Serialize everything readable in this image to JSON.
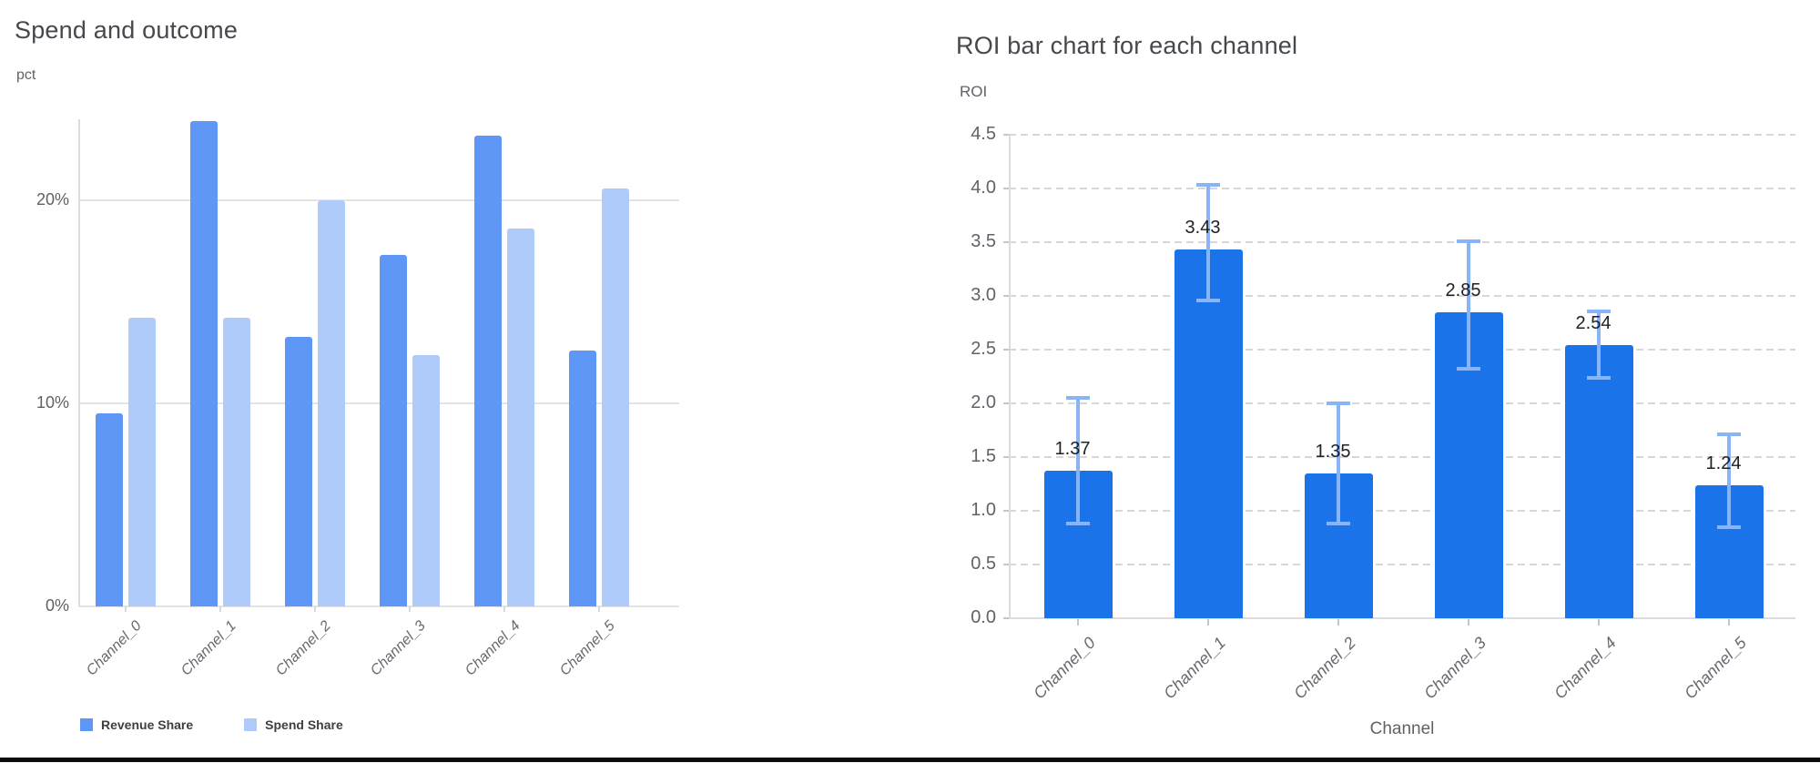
{
  "page": {
    "background": "#ffffff",
    "bottom_border_color": "#0b0b0b"
  },
  "chart_data": [
    {
      "id": "spend-and-outcome",
      "type": "bar",
      "title": "Spend and outcome",
      "xlabel": "",
      "ylabel": "pct",
      "categories": [
        "Channel_0",
        "Channel_1",
        "Channel_2",
        "Channel_3",
        "Channel_4",
        "Channel_5"
      ],
      "series": [
        {
          "name": "Revenue Share",
          "color": "#5f97f6",
          "values": [
            9.5,
            23.9,
            13.3,
            17.3,
            23.2,
            12.6
          ]
        },
        {
          "name": "Spend Share",
          "color": "#aecbfa",
          "values": [
            14.2,
            14.2,
            20.0,
            12.4,
            18.6,
            20.6
          ]
        }
      ],
      "y_tick_values": [
        0,
        10,
        20
      ],
      "y_tick_labels": [
        "0%",
        "10%",
        "20%"
      ],
      "ylim": [
        0,
        24
      ],
      "grid": true,
      "grid_style": "solid",
      "legend_position": "bottom"
    },
    {
      "id": "roi-bar-chart",
      "type": "bar",
      "title": "ROI bar chart for each channel",
      "xlabel": "Channel",
      "ylabel": "ROI",
      "categories": [
        "Channel_0",
        "Channel_1",
        "Channel_2",
        "Channel_3",
        "Channel_4",
        "Channel_5"
      ],
      "series": [
        {
          "name": "ROI",
          "color": "#1a73e8",
          "values": [
            1.37,
            3.43,
            1.35,
            2.85,
            2.54,
            1.24
          ]
        }
      ],
      "data_labels": [
        "1.37",
        "3.43",
        "1.35",
        "2.85",
        "2.54",
        "1.24"
      ],
      "error_bars": {
        "color": "#8ab4f8",
        "low": [
          0.88,
          2.96,
          0.88,
          2.32,
          2.24,
          0.85
        ],
        "high": [
          2.05,
          4.03,
          2.0,
          3.51,
          2.86,
          1.71
        ]
      },
      "y_tick_values": [
        0,
        0.5,
        1.0,
        1.5,
        2.0,
        2.5,
        3.0,
        3.5,
        4.0,
        4.5
      ],
      "y_tick_labels": [
        "0.0",
        "0.5",
        "1.0",
        "1.5",
        "2.0",
        "2.5",
        "3.0",
        "3.5",
        "4.0",
        "4.5"
      ],
      "ylim": [
        0,
        4.5
      ],
      "grid": true,
      "grid_style": "dashed",
      "legend_position": "none"
    }
  ]
}
